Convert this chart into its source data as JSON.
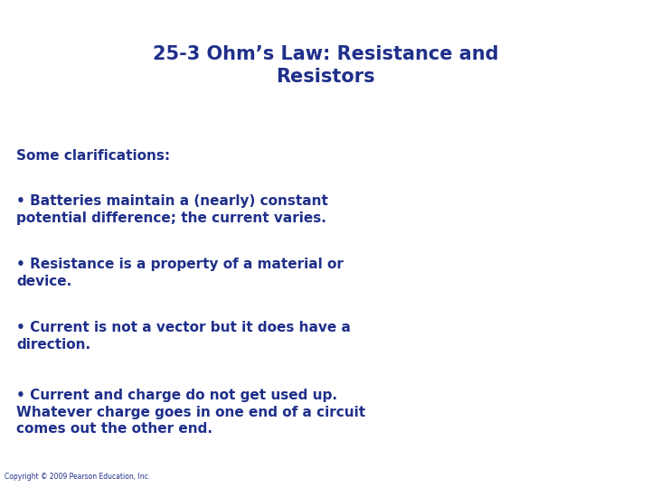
{
  "title_line1": "25-3 Ohm’s Law: Resistance and",
  "title_line2": "Resistors",
  "title_color": "#1F2F8A",
  "body_color": "#1F2F8A",
  "background_color": "#FFFFFF",
  "title_fontsize": 15,
  "body_fontsize": 11,
  "copyright_fontsize": 5.5,
  "copyright_text": "Copyright © 2009 Pearson Education, Inc.",
  "section_label": "Some clarifications:",
  "bullets": [
    "• Batteries maintain a (nearly) constant\npotential difference; the current varies.",
    "• Resistance is a property of a material or\ndevice.",
    "• Current is not a vector but it does have a\ndirection.",
    "• Current and charge do not get used up.\nWhatever charge goes in one end of a circuit\ncomes out the other end."
  ]
}
